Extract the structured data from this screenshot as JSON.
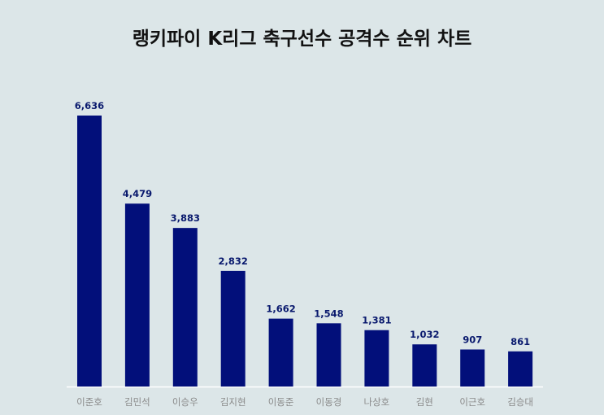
{
  "title": "랭키파이 K리그 축구선수 공격수 순위 차트",
  "colors": {
    "background": "#dce6e8",
    "bar": "#020f7a",
    "value_label": "#0a1a6e",
    "category_label": "#8a8a8a",
    "baseline": "#ffffff"
  },
  "chart_data": {
    "type": "bar",
    "title": "랭키파이 K리그 축구선수 공격수 순위 차트",
    "categories": [
      "이준호",
      "김민석",
      "이승우",
      "김지현",
      "이동준",
      "이동경",
      "나상호",
      "김현",
      "이근호",
      "김승대"
    ],
    "values": [
      6636,
      4479,
      3883,
      2832,
      1662,
      1548,
      1381,
      1032,
      907,
      861
    ],
    "value_labels": [
      "6,636",
      "4,479",
      "3,883",
      "2,832",
      "1,662",
      "1,548",
      "1,381",
      "1,032",
      "907",
      "861"
    ],
    "xlabel": "",
    "ylabel": "",
    "ylim": [
      0,
      6636
    ],
    "grid": false,
    "legend": "none"
  }
}
